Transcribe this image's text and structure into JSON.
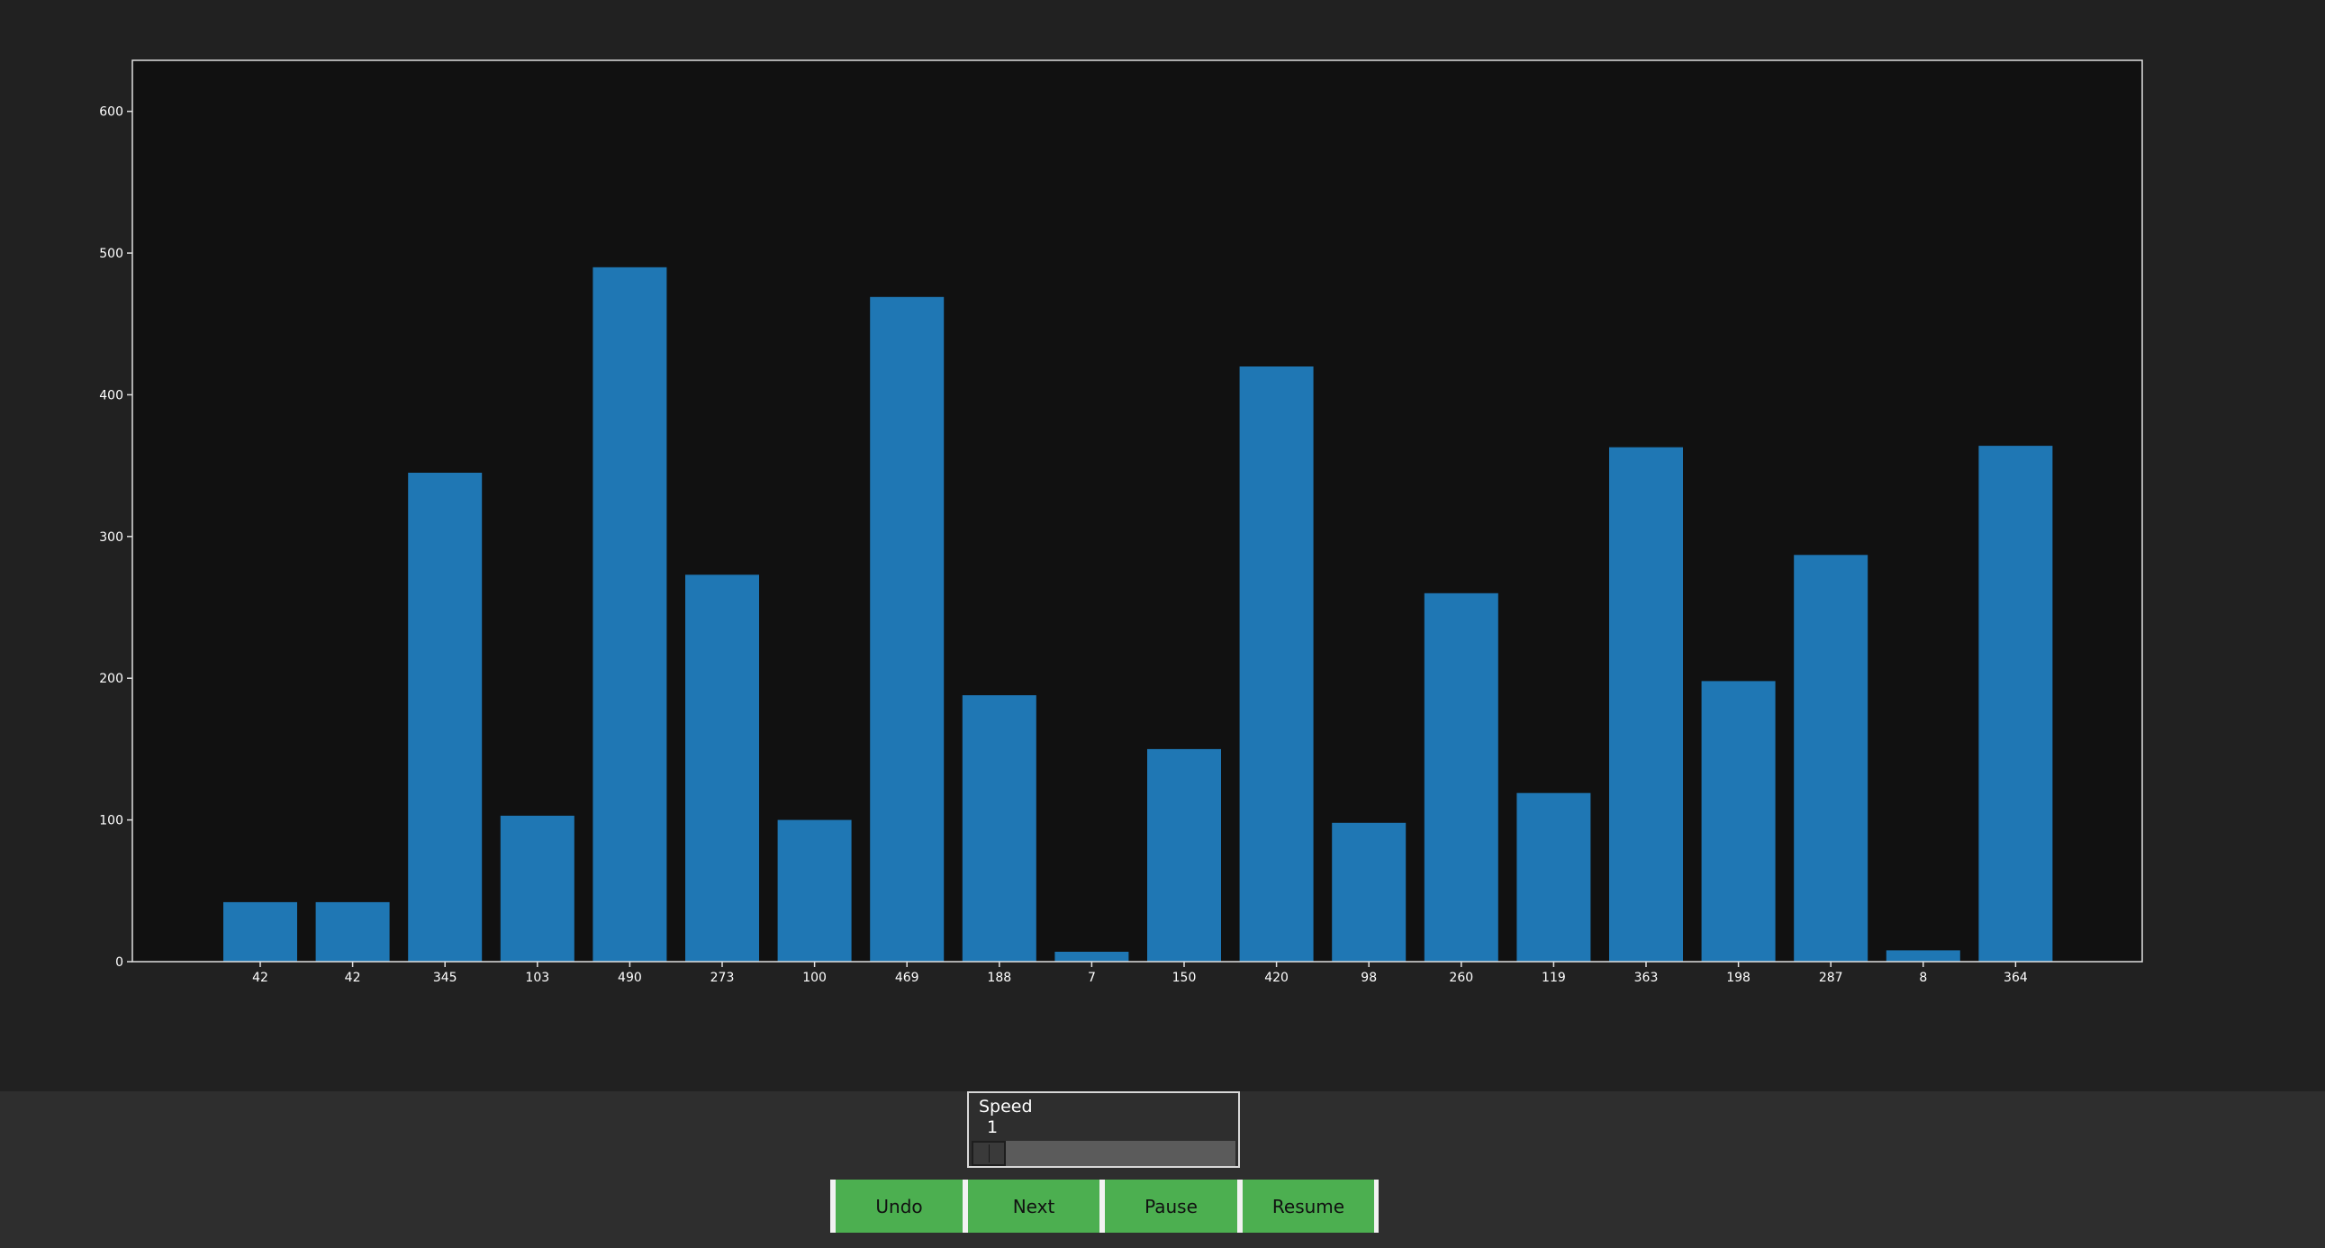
{
  "chart_data": {
    "type": "bar",
    "categories": [
      "42",
      "42",
      "345",
      "103",
      "490",
      "273",
      "100",
      "469",
      "188",
      "7",
      "150",
      "420",
      "98",
      "260",
      "119",
      "363",
      "198",
      "287",
      "8",
      "364"
    ],
    "values": [
      42,
      42,
      345,
      103,
      490,
      273,
      100,
      469,
      188,
      7,
      150,
      420,
      98,
      260,
      119,
      363,
      198,
      287,
      8,
      364
    ],
    "ylim": [
      0,
      636
    ],
    "yticks": [
      0,
      100,
      200,
      300,
      400,
      500,
      600
    ],
    "ytick_labels": [
      "0",
      "100",
      "200",
      "300",
      "400",
      "500",
      "600"
    ],
    "bar_color": "#1f77b4",
    "background": "#111111",
    "grid": false
  },
  "controls": {
    "speed": {
      "label": "Speed",
      "value": "1",
      "level": 1
    },
    "buttons": {
      "undo": "Undo",
      "next": "Next",
      "pause": "Pause",
      "resume": "Resume"
    }
  },
  "colors": {
    "button": "#4caf50",
    "panel": "#2e2e2e"
  }
}
